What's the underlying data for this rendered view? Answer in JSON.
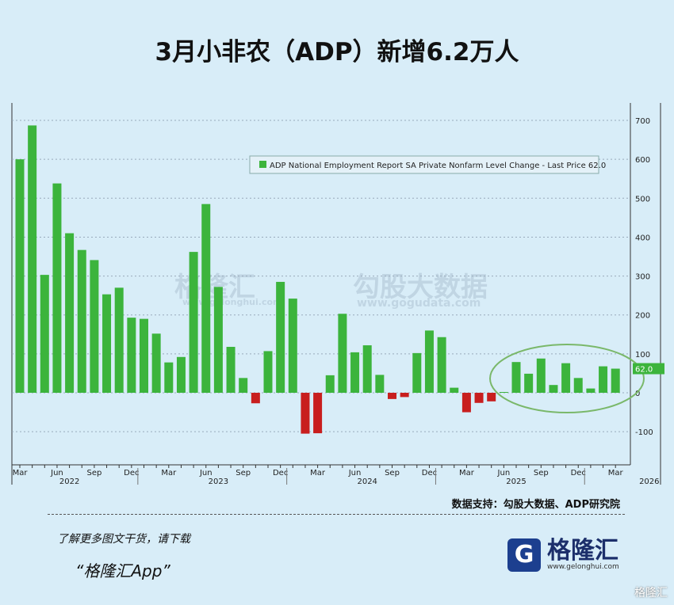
{
  "title": "3月小非农（ADP）新增6.2万人",
  "source": "数据支持：勾股大数据、ADP研究院",
  "promo_line1": "了解更多图文干货，请下载",
  "promo_line2": "“格隆汇App”",
  "logo": {
    "name": "格隆汇",
    "url": "www.gelonghui.com"
  },
  "corner_mark": "格隆汇",
  "watermarks": [
    "格隆汇",
    "www.gelonghui.com",
    "勾股大数据",
    "www.gogudata.com"
  ],
  "chart_data": {
    "type": "bar",
    "legend": "ADP National Employment Report SA Private Nonfarm Level Change - Last Price 62.0",
    "last_price_label": "62.0",
    "ylabel": "",
    "xlabel": "",
    "ylim": [
      -180,
      740
    ],
    "yticks": [
      -100,
      0,
      100,
      200,
      300,
      400,
      500,
      600,
      700
    ],
    "x_month_ticks": [
      "Mar",
      "Jun",
      "Sep",
      "Dec",
      "Mar",
      "Jun",
      "Sep",
      "Dec",
      "Mar",
      "Jun",
      "Sep",
      "Dec",
      "Mar",
      "Jun",
      "Sep",
      "Dec",
      "Mar"
    ],
    "x_year_labels": [
      "2022",
      "2023",
      "2024",
      "2025",
      "2026"
    ],
    "categories": [
      "2022-03",
      "2022-04",
      "2022-05",
      "2022-06",
      "2022-07",
      "2022-08",
      "2022-09",
      "2022-10",
      "2022-11",
      "2022-12",
      "2023-01",
      "2023-02",
      "2023-03",
      "2023-04",
      "2023-05",
      "2023-06",
      "2023-07",
      "2023-08",
      "2023-09",
      "2023-10",
      "2023-11",
      "2023-12",
      "2024-01",
      "2024-02",
      "2024-03",
      "2024-04",
      "2024-05",
      "2024-06",
      "2024-07",
      "2024-08",
      "2024-09",
      "2024-10",
      "2024-11",
      "2024-12",
      "2025-01",
      "2025-02",
      "2025-03",
      "2025-04",
      "2025-05",
      "2025-06",
      "2025-07",
      "2025-08",
      "2025-09",
      "2025-10",
      "2025-11",
      "2025-12",
      "2026-01",
      "2026-02",
      "2026-03"
    ],
    "values": [
      600,
      687,
      303,
      538,
      410,
      367,
      341,
      253,
      270,
      193,
      190,
      152,
      78,
      92,
      362,
      485,
      272,
      118,
      38,
      -27,
      107,
      285,
      242,
      -105,
      -104,
      45,
      203,
      104,
      122,
      46,
      -16,
      -11,
      102,
      160,
      143,
      13,
      -50,
      -26,
      -22,
      2,
      79,
      49,
      88,
      20,
      76,
      38,
      11,
      68,
      62
    ],
    "colors": {
      "positive": "#3cb43c",
      "negative": "#c81e1e",
      "highlight": "#7ab86a"
    }
  }
}
